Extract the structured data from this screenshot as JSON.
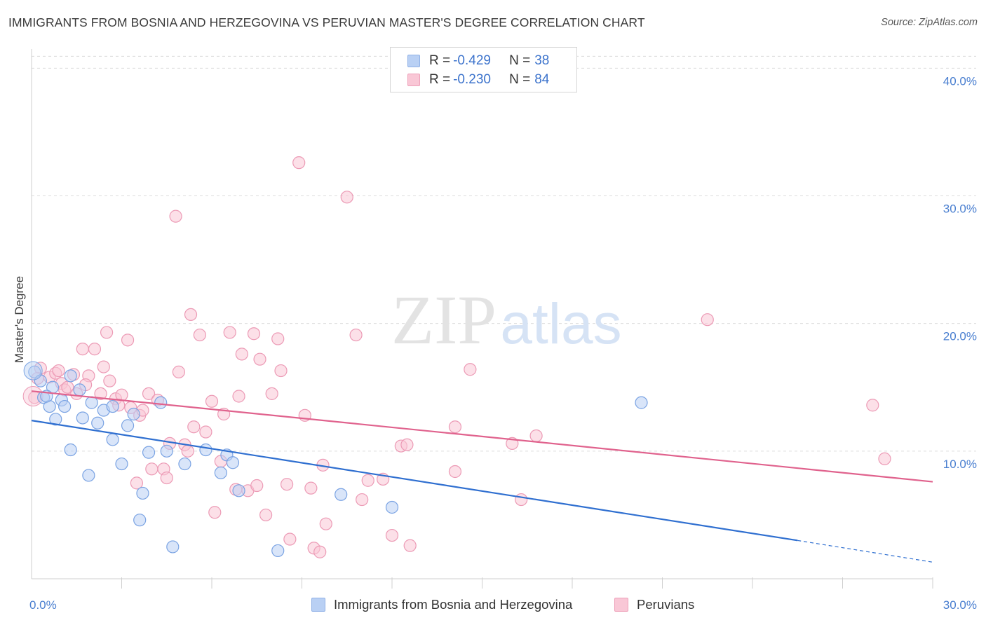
{
  "title": "IMMIGRANTS FROM BOSNIA AND HERZEGOVINA VS PERUVIAN MASTER'S DEGREE CORRELATION CHART",
  "source": "Source: ZipAtlas.com",
  "watermark": {
    "zip": "ZIP",
    "atlas": "atlas"
  },
  "legend_top": [
    {
      "swatch": "blue",
      "r_label": "R =",
      "r_value": "-0.429",
      "n_label": "N =",
      "n_value": "38"
    },
    {
      "swatch": "pink",
      "r_label": "R =",
      "r_value": "-0.230",
      "n_label": "N =",
      "n_value": "84"
    }
  ],
  "legend_bottom": [
    {
      "swatch": "blue",
      "label": "Immigrants from Bosnia and Herzegovina"
    },
    {
      "swatch": "pink",
      "label": "Peruvians"
    }
  ],
  "colors": {
    "blue_fill": "#b9d0f4",
    "blue_stroke": "#7aa3e3",
    "blue_line": "#2f6fd0",
    "pink_fill": "#f9c7d6",
    "pink_stroke": "#ec9ab5",
    "pink_line": "#e0628d",
    "tick_text": "#4a7fd0",
    "grid": "#dcdcdc"
  },
  "chart_data": {
    "type": "scatter",
    "title": "IMMIGRANTS FROM BOSNIA AND HERZEGOVINA VS PERUVIAN MASTER'S DEGREE CORRELATION CHART",
    "xlabel": "",
    "ylabel": "Master's Degree",
    "xlim": [
      0,
      30
    ],
    "ylim": [
      0,
      41.5
    ],
    "x_tick_labels": [
      {
        "value": 0,
        "label": "0.0%"
      },
      {
        "value": 30,
        "label": "30.0%"
      }
    ],
    "y_tick_labels": [
      {
        "value": 10,
        "label": "10.0%"
      },
      {
        "value": 20,
        "label": "20.0%"
      },
      {
        "value": 30,
        "label": "30.0%"
      },
      {
        "value": 40,
        "label": "40.0%"
      }
    ],
    "x_minor_ticks": [
      3,
      6,
      9,
      12,
      15,
      18,
      21,
      24,
      27,
      30
    ],
    "grid": true,
    "legend_placement": "top-center",
    "series": [
      {
        "name": "Immigrants from Bosnia and Herzegovina",
        "color": "#b9d0f4",
        "points": [
          [
            0.1,
            16.2
          ],
          [
            0.3,
            15.5
          ],
          [
            0.4,
            14.2
          ],
          [
            0.6,
            13.5
          ],
          [
            0.8,
            12.5
          ],
          [
            0.7,
            15.0
          ],
          [
            1.0,
            14.0
          ],
          [
            1.1,
            13.5
          ],
          [
            1.3,
            10.1
          ],
          [
            1.6,
            14.8
          ],
          [
            1.7,
            12.6
          ],
          [
            1.3,
            15.9
          ],
          [
            1.9,
            8.1
          ],
          [
            2.0,
            13.8
          ],
          [
            2.2,
            12.2
          ],
          [
            2.4,
            13.2
          ],
          [
            2.7,
            13.5
          ],
          [
            2.7,
            10.9
          ],
          [
            3.0,
            9.0
          ],
          [
            3.2,
            12.0
          ],
          [
            3.4,
            12.9
          ],
          [
            3.7,
            6.7
          ],
          [
            3.6,
            4.6
          ],
          [
            3.9,
            9.9
          ],
          [
            4.3,
            13.8
          ],
          [
            4.5,
            10.0
          ],
          [
            4.7,
            2.5
          ],
          [
            5.1,
            9.0
          ],
          [
            5.8,
            10.1
          ],
          [
            6.3,
            8.3
          ],
          [
            6.5,
            9.7
          ],
          [
            6.7,
            9.1
          ],
          [
            6.9,
            6.9
          ],
          [
            8.2,
            2.2
          ],
          [
            10.3,
            6.6
          ],
          [
            12.0,
            5.6
          ],
          [
            20.3,
            13.8
          ],
          [
            0.5,
            14.3
          ]
        ],
        "trend": {
          "x": [
            0,
            25.5
          ],
          "y": [
            12.4,
            3.0
          ]
        },
        "trend_extension": {
          "x": [
            25.5,
            30
          ],
          "y": [
            3.0,
            1.3
          ]
        }
      },
      {
        "name": "Peruvians",
        "color": "#f9c7d6",
        "points": [
          [
            0.1,
            14.2
          ],
          [
            0.3,
            16.5
          ],
          [
            0.6,
            15.8
          ],
          [
            0.8,
            16.1
          ],
          [
            1.0,
            15.3
          ],
          [
            1.1,
            14.8
          ],
          [
            1.2,
            15.0
          ],
          [
            1.4,
            16.0
          ],
          [
            1.5,
            14.5
          ],
          [
            1.7,
            18.0
          ],
          [
            1.9,
            15.9
          ],
          [
            2.1,
            18.0
          ],
          [
            2.3,
            14.5
          ],
          [
            2.4,
            16.6
          ],
          [
            2.5,
            19.3
          ],
          [
            2.6,
            15.5
          ],
          [
            2.8,
            14.1
          ],
          [
            3.0,
            14.4
          ],
          [
            3.2,
            18.7
          ],
          [
            3.3,
            13.4
          ],
          [
            3.5,
            7.5
          ],
          [
            3.6,
            12.8
          ],
          [
            3.7,
            13.2
          ],
          [
            3.9,
            14.5
          ],
          [
            4.0,
            8.6
          ],
          [
            4.2,
            14.0
          ],
          [
            4.4,
            8.6
          ],
          [
            4.5,
            7.9
          ],
          [
            4.6,
            10.6
          ],
          [
            4.8,
            28.4
          ],
          [
            4.9,
            16.2
          ],
          [
            5.1,
            10.5
          ],
          [
            5.2,
            10.0
          ],
          [
            5.3,
            20.7
          ],
          [
            5.4,
            11.9
          ],
          [
            5.6,
            19.1
          ],
          [
            5.8,
            11.5
          ],
          [
            6.0,
            13.9
          ],
          [
            6.1,
            5.2
          ],
          [
            6.3,
            9.2
          ],
          [
            6.4,
            12.9
          ],
          [
            6.6,
            19.3
          ],
          [
            6.8,
            7.0
          ],
          [
            6.9,
            14.3
          ],
          [
            7.0,
            17.6
          ],
          [
            7.2,
            6.9
          ],
          [
            7.4,
            19.2
          ],
          [
            7.5,
            7.3
          ],
          [
            7.6,
            17.2
          ],
          [
            7.8,
            5.0
          ],
          [
            8.0,
            14.5
          ],
          [
            8.2,
            18.8
          ],
          [
            8.3,
            16.3
          ],
          [
            8.5,
            7.4
          ],
          [
            8.6,
            3.1
          ],
          [
            8.9,
            32.6
          ],
          [
            9.1,
            12.8
          ],
          [
            9.3,
            7.1
          ],
          [
            9.4,
            2.4
          ],
          [
            9.6,
            2.1
          ],
          [
            9.7,
            8.9
          ],
          [
            9.8,
            4.3
          ],
          [
            10.5,
            29.9
          ],
          [
            10.8,
            19.1
          ],
          [
            11.0,
            6.2
          ],
          [
            11.2,
            7.7
          ],
          [
            11.7,
            7.8
          ],
          [
            12.0,
            3.4
          ],
          [
            12.3,
            10.4
          ],
          [
            12.5,
            10.5
          ],
          [
            12.6,
            2.6
          ],
          [
            14.1,
            11.9
          ],
          [
            14.1,
            8.4
          ],
          [
            14.6,
            16.4
          ],
          [
            16.0,
            10.6
          ],
          [
            16.3,
            6.2
          ],
          [
            16.8,
            11.2
          ],
          [
            22.5,
            20.3
          ],
          [
            28.0,
            13.6
          ],
          [
            28.4,
            9.4
          ],
          [
            0.2,
            15.7
          ],
          [
            0.9,
            16.3
          ],
          [
            1.8,
            15.2
          ],
          [
            2.9,
            13.6
          ]
        ],
        "trend": {
          "x": [
            0,
            30
          ],
          "y": [
            14.7,
            7.6
          ]
        }
      }
    ]
  }
}
